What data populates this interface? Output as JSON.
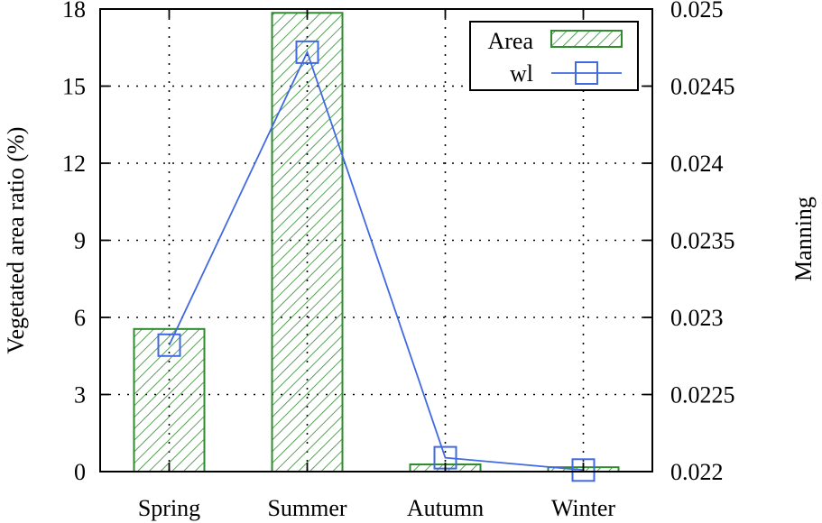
{
  "chart_data": {
    "type": "bar",
    "categories": [
      "Spring",
      "Summer",
      "Autumn",
      "Winter"
    ],
    "series": [
      {
        "name": "Area",
        "kind": "bar",
        "axis": "left",
        "values": [
          5.55,
          17.85,
          0.28,
          0.17
        ],
        "color": "#2e8b2e",
        "pattern": "diagonal-hatch"
      },
      {
        "name": "wl",
        "kind": "line",
        "axis": "right",
        "marker": "square",
        "values": [
          0.02282,
          0.02472,
          0.02209,
          0.02201
        ],
        "color": "#4169e1"
      }
    ],
    "ylabel": "Vegetated area ratio (%)",
    "y2label": "Manning",
    "ylim": [
      0,
      18
    ],
    "y2lim": [
      0.022,
      0.025
    ],
    "yticks": [
      "0",
      "3",
      "6",
      "9",
      "12",
      "15",
      "18"
    ],
    "y2ticks": [
      "0.022",
      "0.0225",
      "0.023",
      "0.0235",
      "0.024",
      "0.0245",
      "0.025"
    ],
    "grid": true,
    "legend_position": "top-right"
  }
}
